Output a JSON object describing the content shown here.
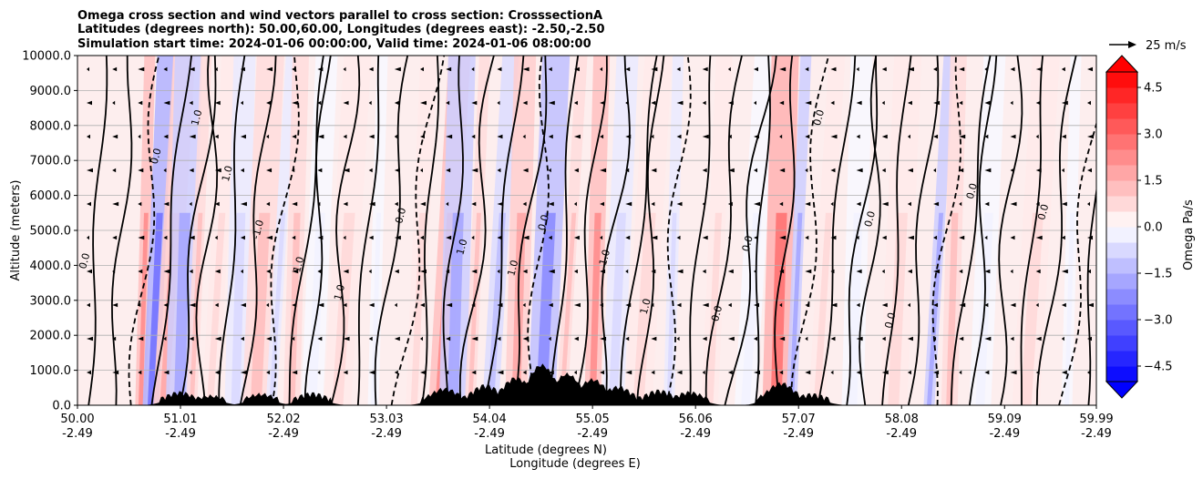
{
  "chart_data": {
    "type": "heatmap",
    "title_lines": [
      "Omega cross section and wind vectors parallel to cross section: CrosssectionA",
      "Latitudes (degrees north): 50.00,60.00, Longitudes (degrees east): -2.50,-2.50",
      "Simulation start time: 2024-01-06 00:00:00, Valid time: 2024-01-06 08:00:00"
    ],
    "ylabel": "Altitude (meters)",
    "xlabel_lines": [
      "Latitude (degrees N)",
      "Longitude (degrees E)"
    ],
    "ylim": [
      0,
      10000
    ],
    "y_ticks": [
      "0.0",
      "1000.0",
      "2000.0",
      "3000.0",
      "4000.0",
      "5000.0",
      "6000.0",
      "7000.0",
      "8000.0",
      "9000.0",
      "10000.0"
    ],
    "x_ticks": [
      {
        "lat": "50.00",
        "lon": "-2.49"
      },
      {
        "lat": "51.01",
        "lon": "-2.49"
      },
      {
        "lat": "52.02",
        "lon": "-2.49"
      },
      {
        "lat": "53.03",
        "lon": "-2.49"
      },
      {
        "lat": "54.04",
        "lon": "-2.49"
      },
      {
        "lat": "55.05",
        "lon": "-2.49"
      },
      {
        "lat": "56.06",
        "lon": "-2.49"
      },
      {
        "lat": "57.07",
        "lon": "-2.49"
      },
      {
        "lat": "58.08",
        "lon": "-2.49"
      },
      {
        "lat": "59.09",
        "lon": "-2.49"
      },
      {
        "lat": "59.99",
        "lon": "-2.49"
      }
    ],
    "xlim": [
      50.0,
      59.99
    ],
    "grid": true,
    "colorbar": {
      "label": "Omega Pa/s",
      "ticks": [
        "4.5",
        "3.0",
        "1.5",
        "0.0",
        "−1.5",
        "−3.0",
        "−4.5"
      ],
      "range": [
        -5.0,
        5.0
      ],
      "levels": 20,
      "colormap": "bwr",
      "extend": "both"
    },
    "vector_key": {
      "label": "25 m/s"
    },
    "contour_labels": [
      "0.0",
      "1.0",
      "-1.0"
    ],
    "omega_bands": [
      {
        "lat": 50.62,
        "value": 2.2
      },
      {
        "lat": 50.72,
        "value": -2.6
      },
      {
        "lat": 50.85,
        "value": 1.8
      },
      {
        "lat": 51.0,
        "value": -2.0
      },
      {
        "lat": 51.12,
        "value": 1.2
      },
      {
        "lat": 51.3,
        "value": 0.6
      },
      {
        "lat": 51.55,
        "value": -0.8
      },
      {
        "lat": 51.75,
        "value": 1.0
      },
      {
        "lat": 51.9,
        "value": -0.6
      },
      {
        "lat": 52.1,
        "value": 1.4
      },
      {
        "lat": 52.3,
        "value": -0.5
      },
      {
        "lat": 52.55,
        "value": 0.9
      },
      {
        "lat": 52.9,
        "value": -0.4
      },
      {
        "lat": 53.3,
        "value": 0.6
      },
      {
        "lat": 53.55,
        "value": 2.0
      },
      {
        "lat": 53.68,
        "value": -1.8
      },
      {
        "lat": 53.85,
        "value": 1.4
      },
      {
        "lat": 54.05,
        "value": -1.2
      },
      {
        "lat": 54.3,
        "value": 1.6
      },
      {
        "lat": 54.55,
        "value": -2.2
      },
      {
        "lat": 54.75,
        "value": 1.0
      },
      {
        "lat": 55.05,
        "value": 2.4
      },
      {
        "lat": 55.25,
        "value": -1.0
      },
      {
        "lat": 55.5,
        "value": 0.8
      },
      {
        "lat": 55.8,
        "value": -0.6
      },
      {
        "lat": 56.2,
        "value": 0.5
      },
      {
        "lat": 56.55,
        "value": -0.4
      },
      {
        "lat": 56.85,
        "value": 2.6
      },
      {
        "lat": 57.0,
        "value": -1.6
      },
      {
        "lat": 57.25,
        "value": 0.7
      },
      {
        "lat": 57.6,
        "value": -0.5
      },
      {
        "lat": 58.0,
        "value": 0.6
      },
      {
        "lat": 58.35,
        "value": -2.0
      },
      {
        "lat": 58.55,
        "value": 1.2
      },
      {
        "lat": 58.85,
        "value": -0.5
      },
      {
        "lat": 59.3,
        "value": 0.5
      },
      {
        "lat": 59.7,
        "value": -0.4
      }
    ]
  }
}
